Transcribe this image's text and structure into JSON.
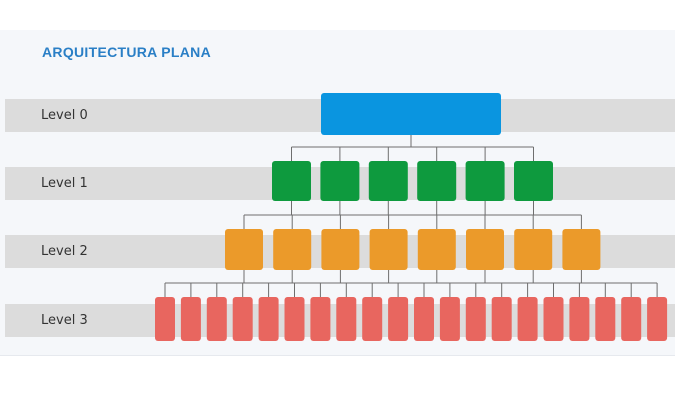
{
  "title": "ARQUITECTURA PLANA",
  "levels": [
    {
      "label": "Level 0",
      "nodes": 1,
      "color": "#0a95e0"
    },
    {
      "label": "Level 1",
      "nodes": 6,
      "color": "#0e9a3e"
    },
    {
      "label": "Level 2",
      "nodes": 8,
      "color": "#eb9a2a"
    },
    {
      "label": "Level 3",
      "nodes": 20,
      "color": "#e8665f"
    }
  ],
  "connector_color": "#6e6e6e"
}
